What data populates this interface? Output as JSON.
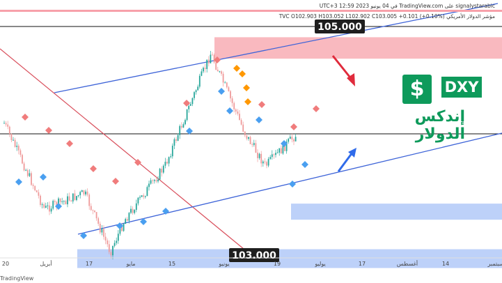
{
  "header": {
    "line1": "signalystarabic على TradingView.com في 04 يونيو 2023 12:59 UTC+3",
    "line2": "مؤشر الدولار الأمريكي TVC  O102.903  H103.052  L102.902  C103.005  +0.101 (+0.10%)"
  },
  "badges": {
    "dollar_sign": "$",
    "ticker": "DXY",
    "title_ar": "إندكس الدولار"
  },
  "footer": {
    "text": "TradingView"
  },
  "colors": {
    "up_candle": "#26a69a",
    "down_candle": "#ef9a9a",
    "trendline_blue": "#3e64d8",
    "trendline_red": "#d94f5c",
    "supply_zone": "#f7a1aa",
    "demand_zone": "#a7c1f7",
    "signal_sell": "#f07c7c",
    "signal_buy": "#4a9ff0",
    "signal_orange": "#ff9800",
    "brand_green": "#0e9a5b"
  },
  "chart_data": {
    "type": "candlestick",
    "price_labels": [
      "105.000",
      "103.000"
    ],
    "x_tick_labels": [
      "20",
      "أبريل",
      "17",
      "مايو",
      "15",
      "يونيو",
      "19",
      "يوليو",
      "17",
      "أغسطس",
      "14",
      "سبتمبر"
    ],
    "series": [
      {
        "date": "2023-03-20",
        "close": 103.2
      },
      {
        "date": "2023-04-03",
        "close": 101.6
      },
      {
        "date": "2023-04-17",
        "close": 101.9
      },
      {
        "date": "2023-04-26",
        "close": 100.8
      },
      {
        "date": "2023-05-01",
        "close": 101.4
      },
      {
        "date": "2023-05-15",
        "close": 102.4
      },
      {
        "date": "2023-05-31",
        "close": 104.5
      },
      {
        "date": "2023-06-12",
        "close": 103.0
      },
      {
        "date": "2023-06-19",
        "close": 102.4
      },
      {
        "date": "2023-06-30",
        "close": 103.0
      }
    ],
    "zones": [
      {
        "type": "supply",
        "from": 104.4,
        "to": 104.8
      },
      {
        "type": "demand",
        "from": 101.4,
        "to": 101.7
      },
      {
        "type": "demand",
        "from": 100.5,
        "to": 100.85
      }
    ],
    "horizontal_lines": [
      105.0,
      103.0
    ]
  }
}
